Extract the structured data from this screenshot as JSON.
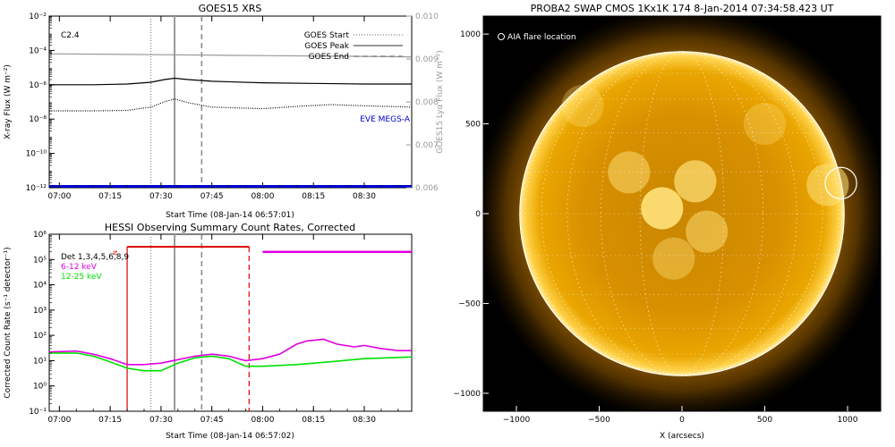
{
  "panels": {
    "xrs": {
      "title": "GOES15 XRS",
      "ylabel": "X-ray Flux (W m⁻²)",
      "y2label": "GOES15 Lyα Flux (W m⁻²)",
      "xlabel": "Start Time (08-Jan-14 06:57:01)",
      "flare_class": "C2.4",
      "eve_label": "EVE MEGS-A",
      "legend": [
        "GOES Start",
        "GOES Peak",
        "GOES End"
      ]
    },
    "hessi": {
      "title": "HESSI Observing Summary Count Rates, Corrected",
      "ylabel": "Corrected Count Rate (s⁻¹ detector⁻¹)",
      "xlabel": "Start Time (08-Jan-14 06:57:02)",
      "legend": [
        {
          "label": "Det 1,3,4,5,6,8,9",
          "color": "#000000"
        },
        {
          "label": "6-12 keV",
          "color": "#e000e0"
        },
        {
          "label": "12-25 keV",
          "color": "#00e000"
        }
      ],
      "n_label": "N"
    },
    "swap": {
      "title": "PROBA2 SWAP CMOS 1Kx1K 174  8-Jan-2014 07:34:58.423 UT",
      "xlabel": "X (arcsecs)",
      "aia_label": "AIA flare location"
    }
  },
  "colors": {
    "lya": "#999999",
    "eve": "#0000cc",
    "magenta": "#e000e0",
    "green": "#00e000",
    "red": "#dd0000",
    "sun_core": "#d89000",
    "sun_edge": "#f7b500"
  },
  "chart_data": [
    {
      "type": "line",
      "title": "GOES15 XRS",
      "xlabel": "Start Time (08-Jan-14 06:57:01)",
      "ylabel": "X-ray Flux (W m⁻²)",
      "y2label": "GOES15 Lyα Flux (W m⁻²)",
      "xlim": [
        "06:57",
        "08:44"
      ],
      "ylim": [
        1e-12,
        0.01
      ],
      "yscale": "log",
      "y2lim": [
        0.006,
        0.01
      ],
      "xticks": [
        "07:00",
        "07:15",
        "07:30",
        "07:45",
        "08:00",
        "08:15",
        "08:30"
      ],
      "yticks": [
        "10⁻¹²",
        "10⁻¹⁰",
        "10⁻⁸",
        "10⁻⁶",
        "10⁻⁴",
        "10⁻²"
      ],
      "y2ticks": [
        "0.006",
        "0.007",
        "0.008",
        "0.009",
        "0.010"
      ],
      "events": {
        "start": "07:27",
        "peak": "07:34",
        "end": "07:42"
      },
      "series": [
        {
          "name": "",
          "color": "#000000",
          "x": [
            "06:57",
            "07:10",
            "07:20",
            "07:27",
            "07:31",
            "07:34",
            "07:38",
            "07:45",
            "08:00",
            "08:15",
            "08:30",
            "08:44"
          ],
          "y": [
            1e-06,
            1e-06,
            1.1e-06,
            1.4e-06,
            2e-06,
            2.4e-06,
            2e-06,
            1.6e-06,
            1.3e-06,
            1.2e-06,
            1.1e-06,
            1.1e-06
          ]
        },
        {
          "name": "",
          "color": "#000000",
          "style": "dotted",
          "x": [
            "06:57",
            "07:10",
            "07:20",
            "07:27",
            "07:31",
            "07:34",
            "07:38",
            "07:45",
            "08:00",
            "08:10",
            "08:20",
            "08:30",
            "08:44"
          ],
          "y": [
            3e-08,
            3e-08,
            3.2e-08,
            5e-08,
            1e-07,
            1.5e-07,
            9e-08,
            5e-08,
            4e-08,
            5.5e-08,
            7e-08,
            6e-08,
            5e-08
          ]
        },
        {
          "name": "",
          "color": "#999999",
          "axis": "y2",
          "x": [
            "06:57",
            "07:30",
            "08:00",
            "08:30",
            "08:44"
          ],
          "y": [
            0.00912,
            0.0091,
            0.00908,
            0.00906,
            0.00905
          ]
        },
        {
          "name": "EVE MEGS-A",
          "color": "#0000cc",
          "x": [
            "06:57",
            "08:44"
          ],
          "y": [
            1.2e-12,
            1.2e-12
          ]
        }
      ]
    },
    {
      "type": "line",
      "title": "HESSI Observing Summary Count Rates, Corrected",
      "xlabel": "Start Time (08-Jan-14 06:57:02)",
      "ylabel": "Corrected Count Rate (s⁻¹ detector⁻¹)",
      "xlim": [
        "06:57",
        "08:44"
      ],
      "ylim": [
        0.1,
        1000000.0
      ],
      "yscale": "log",
      "xticks": [
        "07:00",
        "07:15",
        "07:30",
        "07:45",
        "08:00",
        "08:15",
        "08:30"
      ],
      "yticks": [
        "10⁻¹",
        "10⁰",
        "10¹",
        "10²",
        "10³",
        "10⁴",
        "10⁵",
        "10⁶"
      ],
      "events": {
        "start": "07:27",
        "peak": "07:34",
        "end": "07:42"
      },
      "night_band": {
        "from": "07:20",
        "to": "07:56"
      },
      "saa_band": {
        "from": "08:00",
        "to": "08:44",
        "y": 200000.0
      },
      "series": [
        {
          "name": "6-12 keV",
          "color": "#e000e0",
          "x": [
            "06:57",
            "07:05",
            "07:10",
            "07:15",
            "07:20",
            "07:25",
            "07:30",
            "07:35",
            "07:40",
            "07:45",
            "07:50",
            "07:55",
            "08:00",
            "08:05",
            "08:10",
            "08:13",
            "08:18",
            "08:22",
            "08:27",
            "08:30",
            "08:35",
            "08:40",
            "08:44"
          ],
          "y": [
            22,
            24,
            18,
            12,
            7,
            7,
            8,
            11,
            15,
            18,
            15,
            10,
            12,
            18,
            45,
            60,
            70,
            45,
            35,
            40,
            30,
            25,
            25
          ]
        },
        {
          "name": "12-25 keV",
          "color": "#00e000",
          "x": [
            "06:57",
            "07:05",
            "07:10",
            "07:15",
            "07:20",
            "07:25",
            "07:30",
            "07:35",
            "07:40",
            "07:45",
            "07:50",
            "07:55",
            "08:00",
            "08:10",
            "08:20",
            "08:30",
            "08:44"
          ],
          "y": [
            20,
            20,
            15,
            9,
            5,
            4,
            4,
            8,
            13,
            15,
            12,
            6,
            6,
            7,
            9,
            12,
            14
          ]
        }
      ]
    },
    {
      "type": "image",
      "title": "PROBA2 SWAP CMOS 1Kx1K 174  8-Jan-2014 07:34:58.423 UT",
      "xlabel": "X (arcsecs)",
      "xlim": [
        -1200,
        1200
      ],
      "ylim": [
        -1100,
        1100
      ],
      "xticks": [
        "−1000",
        "−500",
        "0",
        "500",
        "1000"
      ],
      "yticks": [
        "−1000",
        "−500",
        "0",
        "500",
        "1000"
      ],
      "aia_flare": {
        "x": 960,
        "y": 170,
        "r": 95
      }
    }
  ]
}
